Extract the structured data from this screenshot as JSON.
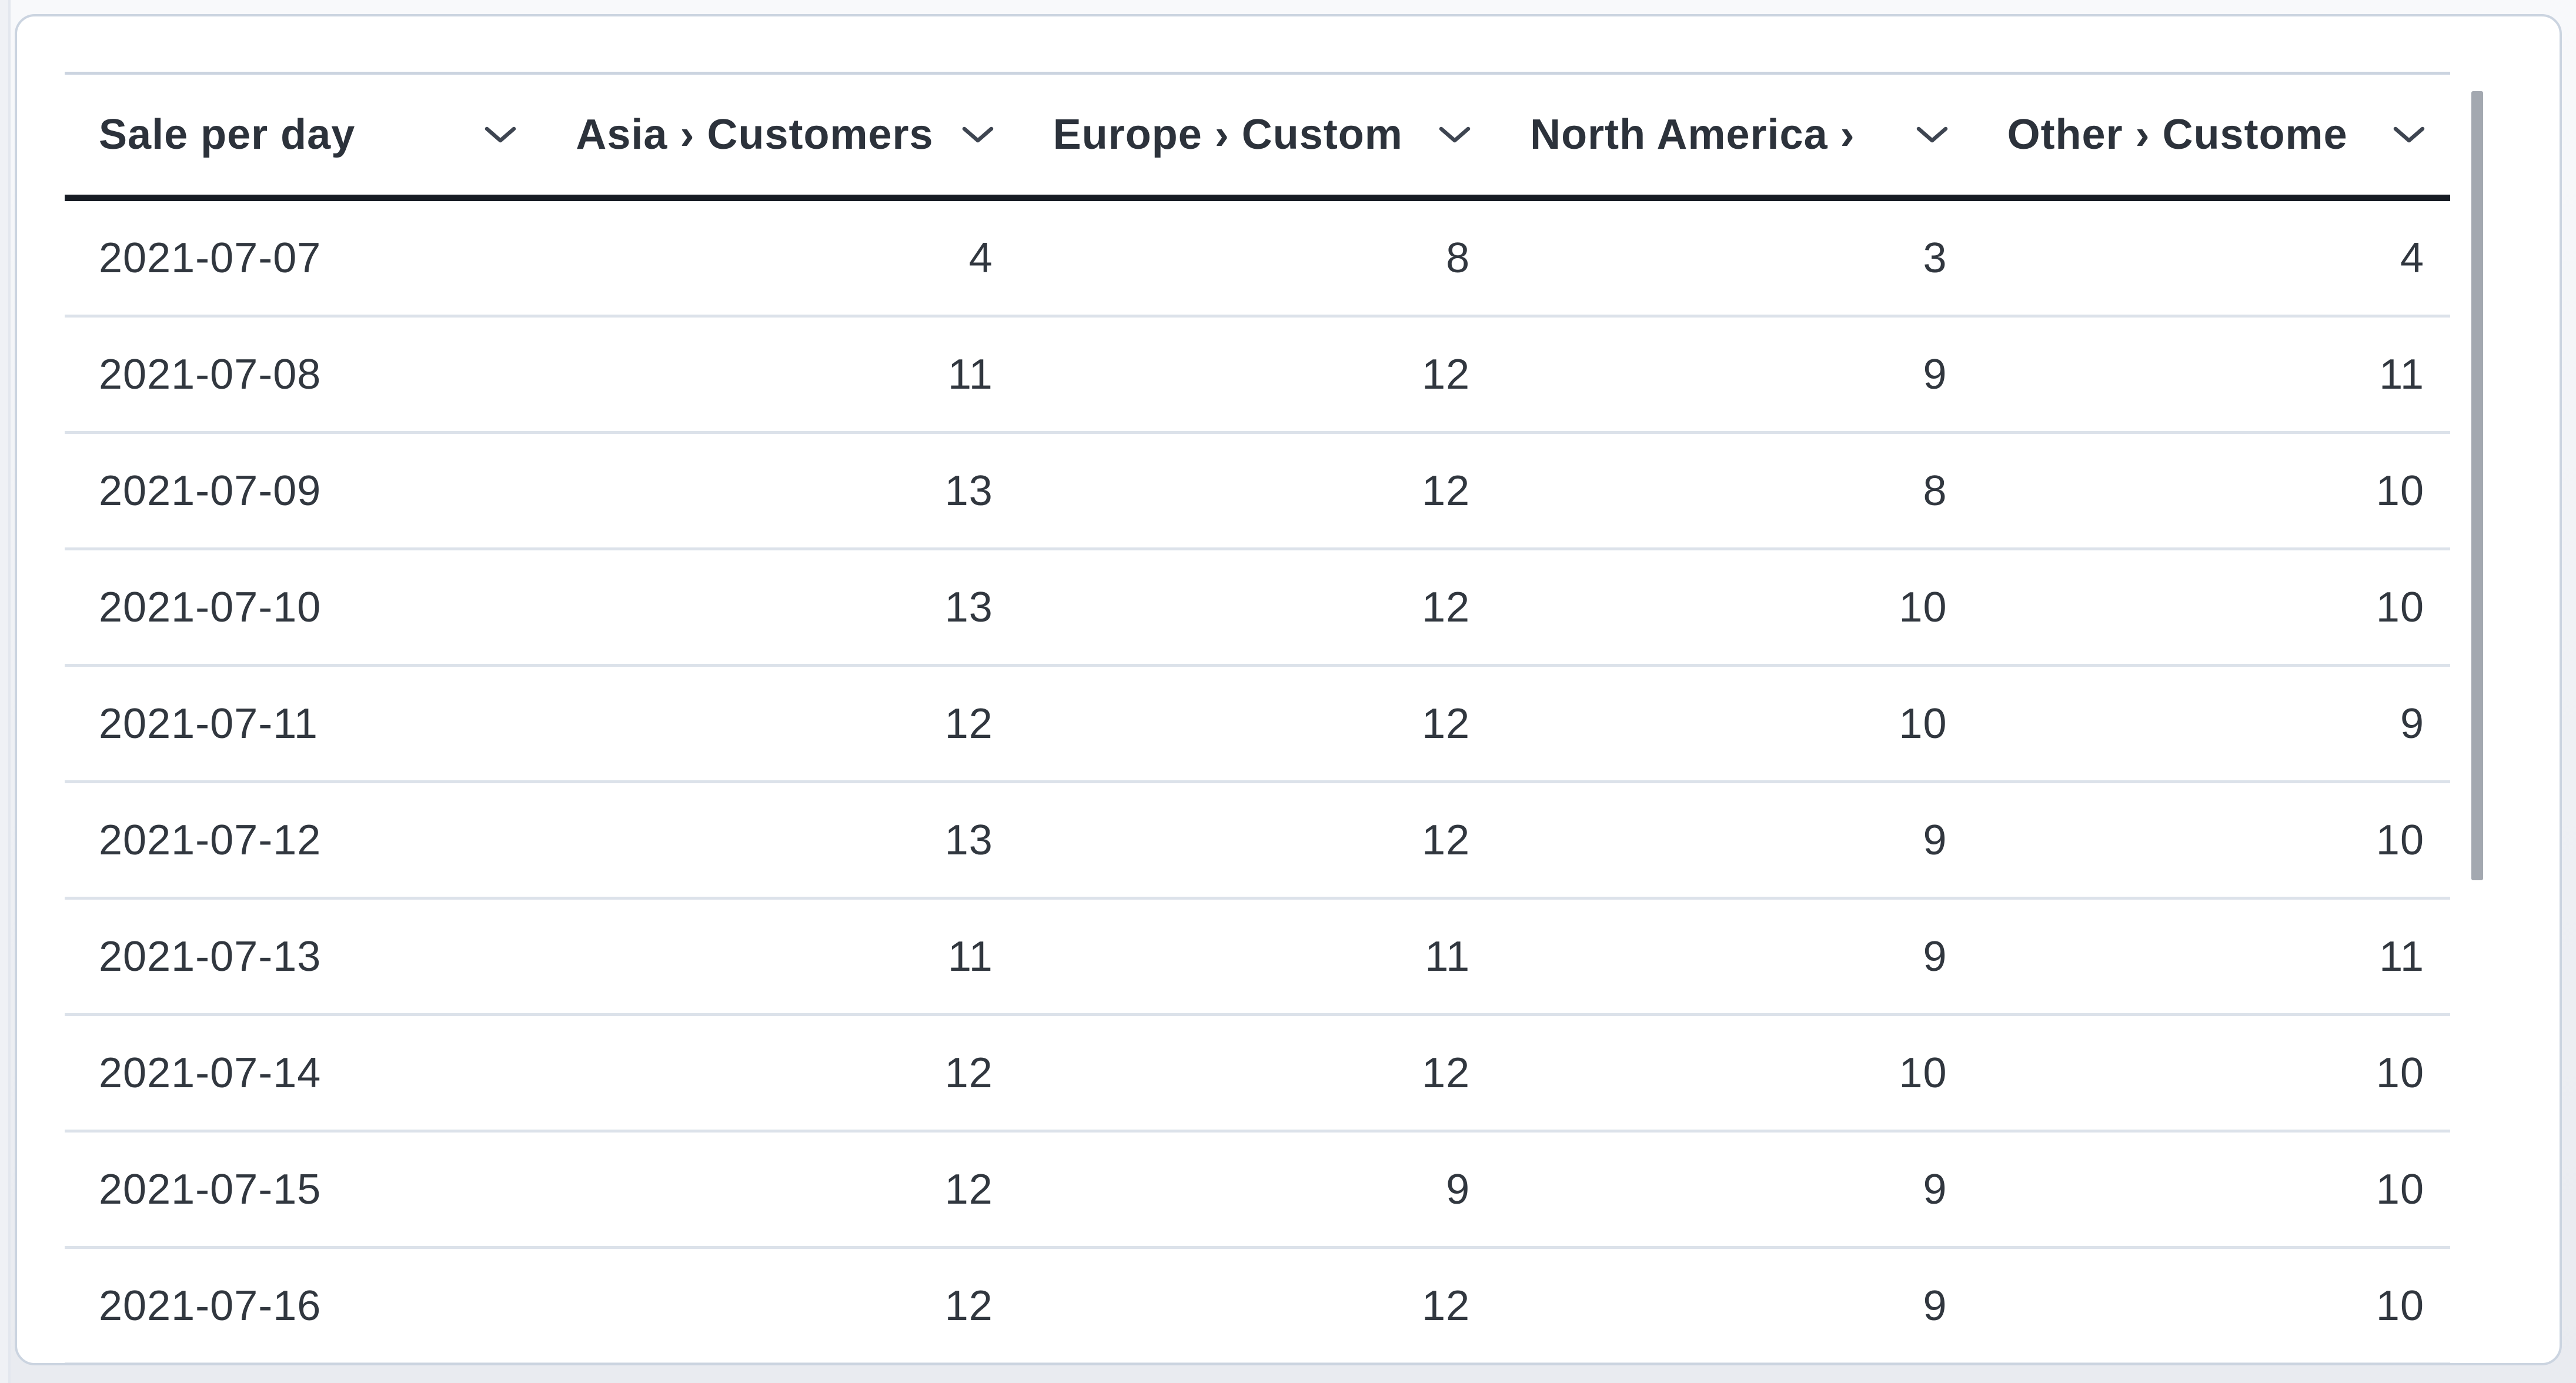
{
  "table": {
    "columns": [
      {
        "id": "sale-per-day",
        "label": "Sale per day"
      },
      {
        "id": "asia-customers",
        "label": "Asia › Customers"
      },
      {
        "id": "europe-customers",
        "label": "Europe › Custom"
      },
      {
        "id": "north-america-customers",
        "label": "North America › "
      },
      {
        "id": "other-customers",
        "label": "Other › Custome"
      }
    ],
    "rows": [
      [
        "2021-07-07",
        "4",
        "8",
        "3",
        "4"
      ],
      [
        "2021-07-08",
        "11",
        "12",
        "9",
        "11"
      ],
      [
        "2021-07-09",
        "13",
        "12",
        "8",
        "10"
      ],
      [
        "2021-07-10",
        "13",
        "12",
        "10",
        "10"
      ],
      [
        "2021-07-11",
        "12",
        "12",
        "10",
        "9"
      ],
      [
        "2021-07-12",
        "13",
        "12",
        "9",
        "10"
      ],
      [
        "2021-07-13",
        "11",
        "11",
        "9",
        "11"
      ],
      [
        "2021-07-14",
        "12",
        "12",
        "10",
        "10"
      ],
      [
        "2021-07-15",
        "12",
        "9",
        "9",
        "10"
      ],
      [
        "2021-07-16",
        "12",
        "12",
        "9",
        "10"
      ]
    ]
  },
  "icons": {
    "header_sort": "chevron-down"
  },
  "colors": {
    "page_bg_top": "#f8f9fb",
    "page_bg_bottom": "#e9ebf0",
    "card_border": "#cbd4e0",
    "row_divider": "#dce2ea",
    "header_underline": "#171c24",
    "text": "#31373f",
    "header_text": "#2c323b",
    "scrollbar_thumb": "#a3a8b0",
    "chevron": "#3e4551"
  }
}
